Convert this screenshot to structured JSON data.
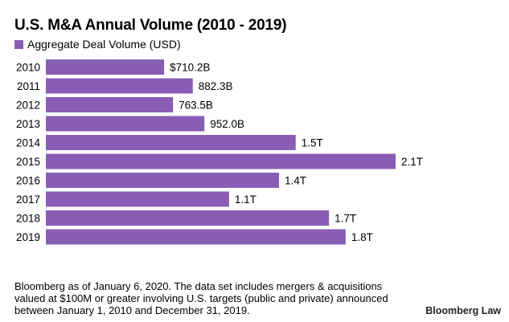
{
  "chart_data": {
    "type": "bar",
    "orientation": "horizontal",
    "title": "U.S. M&A Annual Volume (2010 - 2019)",
    "legend": [
      "Aggregate Deal Volume (USD)"
    ],
    "legend_position": "top-left",
    "categories": [
      "2010",
      "2011",
      "2012",
      "2013",
      "2014",
      "2015",
      "2016",
      "2017",
      "2018",
      "2019"
    ],
    "values_billions": [
      710.2,
      882.3,
      763.5,
      952.0,
      1500,
      2100,
      1400,
      1100,
      1700,
      1800
    ],
    "data_labels": [
      "$710.2B",
      "882.3B",
      "763.5B",
      "952.0B",
      "1.5T",
      "2.1T",
      "1.4T",
      "1.1T",
      "1.7T",
      "1.8T"
    ],
    "xlabel": "",
    "ylabel": "",
    "xlim": [
      0,
      2100
    ],
    "grid": false,
    "bar_color": "#8a5db4"
  },
  "footnote": "Bloomberg as of January 6, 2020. The data set includes mergers & acquisitions valued at $100M or greater involving U.S. targets (public and private) announced between January 1, 2010 and December 31, 2019.",
  "brand": "Bloomberg Law"
}
